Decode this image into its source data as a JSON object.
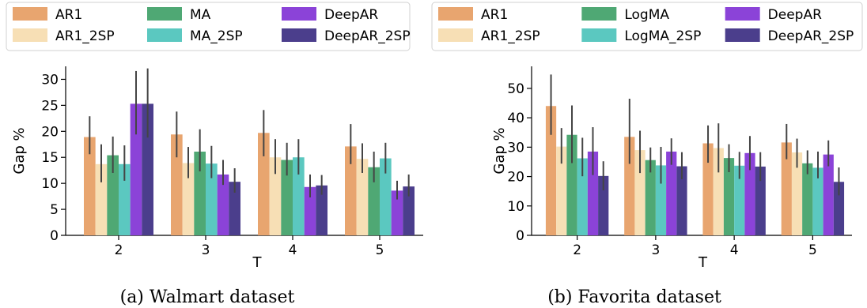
{
  "figure": {
    "panels": [
      {
        "caption": "(a) Walmart dataset"
      },
      {
        "caption": "(b) Favorita dataset"
      }
    ]
  },
  "chart_data": [
    {
      "type": "bar",
      "title": "",
      "xlabel": "T",
      "ylabel": "Gap %",
      "categories": [
        "2",
        "3",
        "4",
        "5"
      ],
      "ylim": [
        0,
        32.5
      ],
      "yticks": [
        0,
        5,
        10,
        15,
        20,
        25,
        30
      ],
      "legend_position": "top",
      "legend_columns": 3,
      "grid": false,
      "error_bars": true,
      "series": [
        {
          "name": "AR1",
          "color": "#e8a56f",
          "values": [
            18.9,
            19.4,
            19.7,
            17.1
          ],
          "err_low": [
            15.6,
            15.0,
            15.2,
            13.7
          ],
          "err_high": [
            22.9,
            23.8,
            24.1,
            21.4
          ]
        },
        {
          "name": "AR1_2SP",
          "color": "#f7dfb5",
          "values": [
            13.7,
            13.9,
            15.0,
            14.7
          ],
          "err_low": [
            10.2,
            11.0,
            11.8,
            12.0
          ],
          "err_high": [
            17.5,
            17.0,
            18.5,
            17.7
          ]
        },
        {
          "name": "MA",
          "color": "#4fa874",
          "values": [
            15.4,
            16.1,
            14.5,
            13.1
          ],
          "err_low": [
            12.0,
            12.3,
            11.5,
            10.2
          ],
          "err_high": [
            19.0,
            20.4,
            17.8,
            16.1
          ]
        },
        {
          "name": "MA_2SP",
          "color": "#5bc8c0",
          "values": [
            13.7,
            13.8,
            15.0,
            14.8
          ],
          "err_low": [
            10.5,
            11.0,
            11.7,
            11.9
          ],
          "err_high": [
            17.3,
            17.2,
            18.5,
            17.8
          ]
        },
        {
          "name": "DeepAR",
          "color": "#8b43d8",
          "values": [
            25.3,
            11.7,
            9.3,
            8.6
          ],
          "err_low": [
            19.4,
            9.7,
            7.3,
            6.9
          ],
          "err_high": [
            31.6,
            14.5,
            11.7,
            10.5
          ]
        },
        {
          "name": "DeepAR_2SP",
          "color": "#4b3e8c",
          "values": [
            25.3,
            10.3,
            9.6,
            9.4
          ],
          "err_low": [
            18.8,
            8.2,
            7.8,
            7.5
          ],
          "err_high": [
            32.1,
            12.9,
            11.6,
            11.7
          ]
        }
      ]
    },
    {
      "type": "bar",
      "title": "",
      "xlabel": "T",
      "ylabel": "Gap %",
      "categories": [
        "2",
        "3",
        "4",
        "5"
      ],
      "ylim": [
        0,
        57.5
      ],
      "yticks": [
        0,
        10,
        20,
        30,
        40,
        50
      ],
      "legend_position": "top",
      "legend_columns": 3,
      "grid": false,
      "error_bars": true,
      "series": [
        {
          "name": "AR1",
          "color": "#e8a56f",
          "values": [
            44.0,
            33.5,
            31.3,
            31.6
          ],
          "err_low": [
            34.2,
            24.3,
            24.7,
            25.9
          ],
          "err_high": [
            54.7,
            46.5,
            37.4,
            37.9
          ]
        },
        {
          "name": "AR1_2SP",
          "color": "#f7dfb5",
          "values": [
            30.2,
            29.0,
            29.7,
            28.2
          ],
          "err_low": [
            24.4,
            21.2,
            21.4,
            23.0
          ],
          "err_high": [
            36.5,
            35.6,
            38.1,
            32.9
          ]
        },
        {
          "name": "LogMA",
          "color": "#4fa874",
          "values": [
            34.2,
            25.6,
            26.3,
            24.5
          ],
          "err_low": [
            24.6,
            21.4,
            21.5,
            20.8
          ],
          "err_high": [
            44.2,
            29.9,
            31.0,
            28.9
          ]
        },
        {
          "name": "LogMA_2SP",
          "color": "#5bc8c0",
          "values": [
            26.2,
            23.8,
            23.7,
            23.0
          ],
          "err_low": [
            20.1,
            17.6,
            19.2,
            19.4
          ],
          "err_high": [
            33.2,
            30.1,
            28.4,
            28.5
          ]
        },
        {
          "name": "DeepAR",
          "color": "#8b43d8",
          "values": [
            28.5,
            28.5,
            28.0,
            27.5
          ],
          "err_low": [
            20.5,
            24.0,
            22.2,
            23.5
          ],
          "err_high": [
            36.8,
            33.0,
            33.8,
            32.3
          ]
        },
        {
          "name": "DeepAR_2SP",
          "color": "#4b3e8c",
          "values": [
            20.2,
            23.5,
            23.4,
            18.2
          ],
          "err_low": [
            15.3,
            19.1,
            18.5,
            13.6
          ],
          "err_high": [
            25.2,
            28.3,
            28.3,
            23.1
          ]
        }
      ]
    }
  ]
}
